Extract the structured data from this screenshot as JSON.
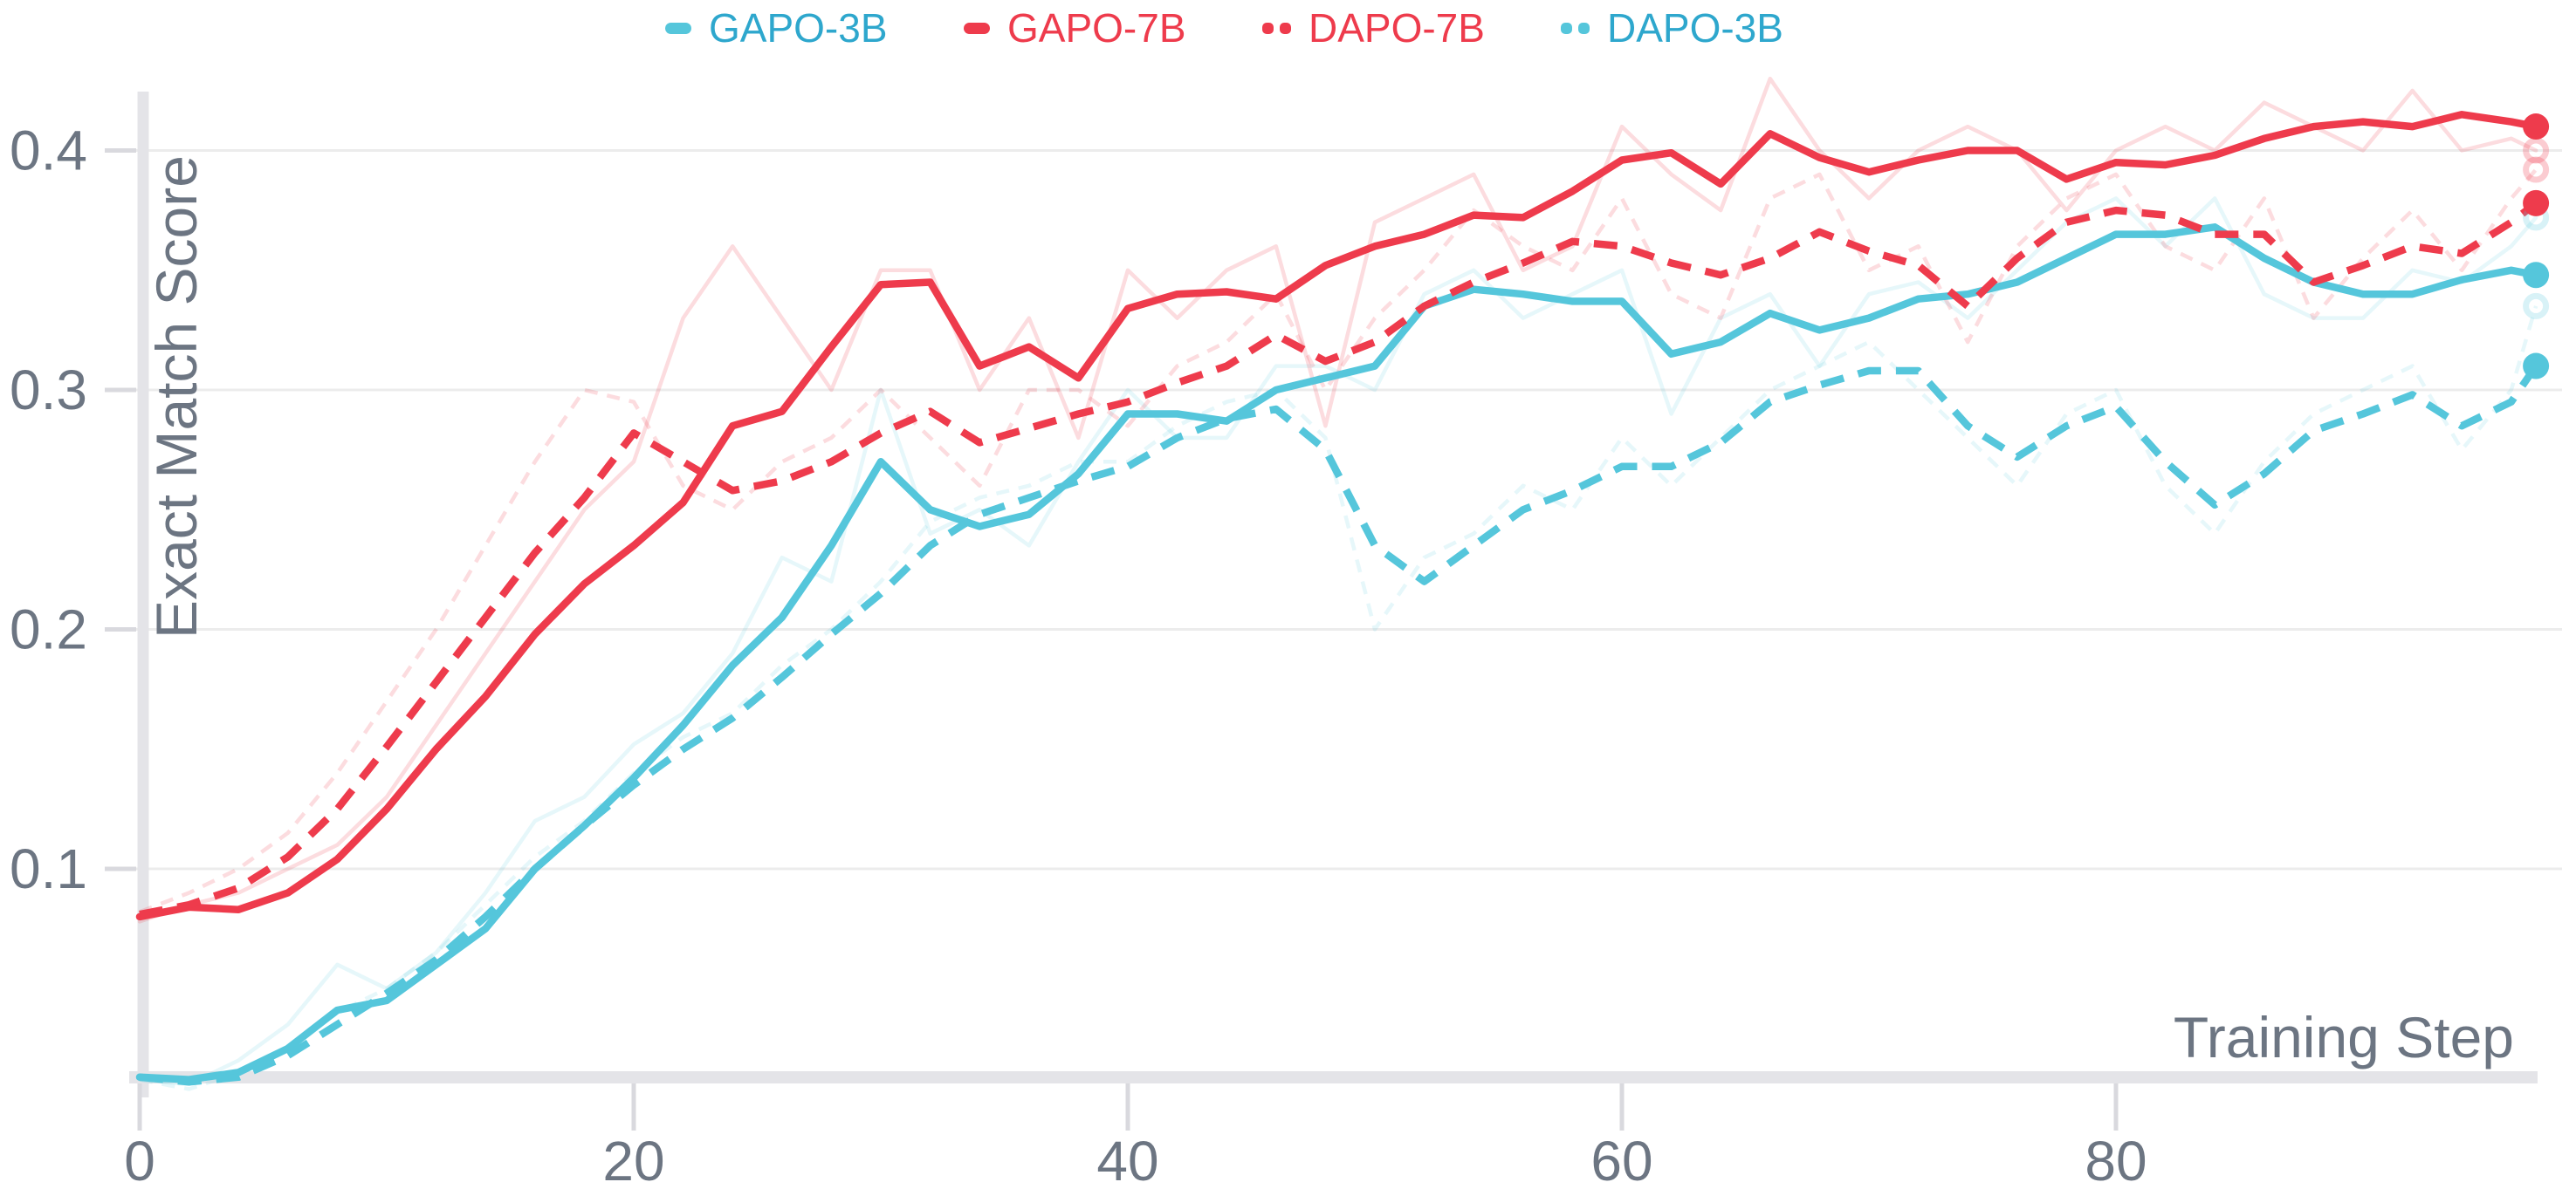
{
  "figure": {
    "background": "#ffffff",
    "colors": {
      "text_gray": "#6C7582",
      "grid": "#ECECEC",
      "axis_line": "#E4E4E8",
      "tick_mark": "#D9D9DE"
    }
  },
  "legend": {
    "position": "top-center",
    "items": [
      {
        "label": "GAPO-3B",
        "style": "solid",
        "color": "#55C6DB",
        "label_color": "#2EA7CD"
      },
      {
        "label": "GAPO-7B",
        "style": "solid",
        "color": "#EE3B4C",
        "label_color": "#EE3B4C"
      },
      {
        "label": "DAPO-7B",
        "style": "dashed",
        "color": "#EE3B4C",
        "label_color": "#EE3B4C"
      },
      {
        "label": "DAPO-3B",
        "style": "dashed",
        "color": "#55C6DB",
        "label_color": "#2EA7CD"
      }
    ]
  },
  "axes": {
    "x": {
      "label": "Training Step",
      "ticks": [
        {
          "value": 0,
          "label": "0"
        },
        {
          "value": 20,
          "label": "20"
        },
        {
          "value": 40,
          "label": "40"
        },
        {
          "value": 60,
          "label": "60"
        },
        {
          "value": 80,
          "label": "80"
        }
      ]
    },
    "y": {
      "label": "Exact Match Score",
      "ticks": [
        {
          "value": 0.1,
          "label": "0.1"
        },
        {
          "value": 0.2,
          "label": "0.2"
        },
        {
          "value": 0.3,
          "label": "0.3"
        },
        {
          "value": 0.4,
          "label": "0.4"
        }
      ]
    }
  },
  "chart_data": {
    "type": "line",
    "title": "",
    "xlabel": "Training Step",
    "ylabel": "Exact Match Score",
    "xlim": [
      0,
      98.2
    ],
    "ylim": [
      0.0,
      0.443
    ],
    "grid": "horizontal-only",
    "legend_position": "top-center",
    "note": "Each model has a bold smoothed curve plus a faint raw curve; end-of-training markers at final step.",
    "steps": [
      0,
      2,
      4,
      6,
      8,
      10,
      12,
      14,
      16,
      18,
      20,
      22,
      24,
      26,
      28,
      30,
      32,
      34,
      36,
      38,
      40,
      42,
      44,
      46,
      48,
      50,
      52,
      54,
      56,
      58,
      60,
      62,
      64,
      66,
      68,
      70,
      72,
      74,
      76,
      78,
      80,
      82,
      84,
      86,
      88,
      90,
      92,
      94,
      96,
      97
    ],
    "series": [
      {
        "name": "GAPO-3B",
        "color": "#55C6DB",
        "style": "solid",
        "raw_opacity": 0.15,
        "smoothed": [
          0.013,
          0.012,
          0.015,
          0.025,
          0.041,
          0.045,
          0.06,
          0.075,
          0.1,
          0.118,
          0.138,
          0.16,
          0.185,
          0.205,
          0.235,
          0.27,
          0.25,
          0.243,
          0.248,
          0.265,
          0.29,
          0.29,
          0.287,
          0.3,
          0.305,
          0.31,
          0.335,
          0.342,
          0.34,
          0.337,
          0.337,
          0.315,
          0.32,
          0.332,
          0.325,
          0.33,
          0.338,
          0.34,
          0.345,
          0.355,
          0.365,
          0.365,
          0.368,
          0.355,
          0.345,
          0.34,
          0.34,
          0.346,
          0.35,
          0.348
        ],
        "raw": [
          0.012,
          0.01,
          0.02,
          0.035,
          0.06,
          0.05,
          0.065,
          0.09,
          0.12,
          0.13,
          0.152,
          0.165,
          0.19,
          0.23,
          0.22,
          0.3,
          0.24,
          0.25,
          0.235,
          0.27,
          0.3,
          0.28,
          0.28,
          0.31,
          0.31,
          0.3,
          0.34,
          0.35,
          0.33,
          0.34,
          0.35,
          0.29,
          0.33,
          0.34,
          0.31,
          0.34,
          0.345,
          0.33,
          0.35,
          0.37,
          0.38,
          0.36,
          0.38,
          0.34,
          0.33,
          0.33,
          0.35,
          0.345,
          0.36,
          0.372
        ],
        "end_value": 0.348,
        "end_value_raw": 0.372
      },
      {
        "name": "GAPO-7B",
        "color": "#EE3B4C",
        "style": "solid",
        "raw_opacity": 0.18,
        "smoothed": [
          0.08,
          0.084,
          0.083,
          0.09,
          0.104,
          0.125,
          0.15,
          0.172,
          0.198,
          0.219,
          0.235,
          0.253,
          0.285,
          0.291,
          0.318,
          0.344,
          0.345,
          0.31,
          0.318,
          0.305,
          0.334,
          0.34,
          0.341,
          0.338,
          0.352,
          0.36,
          0.365,
          0.373,
          0.372,
          0.383,
          0.396,
          0.399,
          0.386,
          0.407,
          0.397,
          0.391,
          0.396,
          0.4,
          0.4,
          0.388,
          0.395,
          0.394,
          0.398,
          0.405,
          0.41,
          0.412,
          0.41,
          0.415,
          0.412,
          0.41
        ],
        "raw": [
          0.078,
          0.085,
          0.09,
          0.1,
          0.11,
          0.13,
          0.16,
          0.19,
          0.22,
          0.25,
          0.27,
          0.33,
          0.36,
          0.33,
          0.3,
          0.35,
          0.35,
          0.3,
          0.33,
          0.28,
          0.35,
          0.33,
          0.35,
          0.36,
          0.285,
          0.37,
          0.38,
          0.39,
          0.35,
          0.36,
          0.41,
          0.39,
          0.375,
          0.43,
          0.4,
          0.38,
          0.4,
          0.41,
          0.4,
          0.375,
          0.4,
          0.41,
          0.4,
          0.42,
          0.41,
          0.4,
          0.425,
          0.4,
          0.405,
          0.4
        ],
        "end_value": 0.41,
        "end_value_raw": 0.4
      },
      {
        "name": "DAPO-7B",
        "color": "#EE3B4C",
        "style": "dashed",
        "raw_opacity": 0.18,
        "smoothed": [
          0.081,
          0.085,
          0.092,
          0.105,
          0.125,
          0.151,
          0.178,
          0.205,
          0.232,
          0.255,
          0.282,
          0.27,
          0.258,
          0.262,
          0.27,
          0.282,
          0.291,
          0.278,
          0.284,
          0.29,
          0.295,
          0.303,
          0.31,
          0.323,
          0.312,
          0.32,
          0.335,
          0.345,
          0.353,
          0.362,
          0.36,
          0.353,
          0.348,
          0.355,
          0.366,
          0.358,
          0.352,
          0.335,
          0.355,
          0.37,
          0.375,
          0.373,
          0.365,
          0.365,
          0.345,
          0.352,
          0.36,
          0.357,
          0.37,
          0.378
        ],
        "raw": [
          0.082,
          0.09,
          0.1,
          0.115,
          0.14,
          0.17,
          0.2,
          0.235,
          0.27,
          0.3,
          0.295,
          0.26,
          0.25,
          0.27,
          0.28,
          0.3,
          0.28,
          0.26,
          0.3,
          0.3,
          0.285,
          0.31,
          0.32,
          0.34,
          0.3,
          0.33,
          0.35,
          0.375,
          0.36,
          0.35,
          0.38,
          0.34,
          0.33,
          0.38,
          0.39,
          0.35,
          0.36,
          0.32,
          0.36,
          0.38,
          0.39,
          0.36,
          0.35,
          0.38,
          0.33,
          0.355,
          0.375,
          0.35,
          0.38,
          0.392
        ],
        "end_value": 0.378,
        "end_value_raw": 0.392
      },
      {
        "name": "DAPO-3B",
        "color": "#55C6DB",
        "style": "dashed",
        "raw_opacity": 0.15,
        "smoothed": [
          0.013,
          0.011,
          0.013,
          0.022,
          0.035,
          0.048,
          0.062,
          0.08,
          0.1,
          0.118,
          0.135,
          0.15,
          0.163,
          0.18,
          0.198,
          0.215,
          0.235,
          0.248,
          0.255,
          0.262,
          0.268,
          0.28,
          0.288,
          0.292,
          0.275,
          0.235,
          0.22,
          0.235,
          0.25,
          0.258,
          0.268,
          0.268,
          0.278,
          0.295,
          0.302,
          0.308,
          0.308,
          0.285,
          0.272,
          0.285,
          0.293,
          0.27,
          0.252,
          0.265,
          0.283,
          0.29,
          0.298,
          0.285,
          0.295,
          0.31
        ],
        "raw": [
          0.012,
          0.008,
          0.015,
          0.025,
          0.04,
          0.05,
          0.065,
          0.085,
          0.105,
          0.12,
          0.14,
          0.155,
          0.165,
          0.185,
          0.2,
          0.22,
          0.245,
          0.255,
          0.26,
          0.27,
          0.27,
          0.285,
          0.295,
          0.3,
          0.28,
          0.2,
          0.23,
          0.24,
          0.26,
          0.25,
          0.28,
          0.26,
          0.28,
          0.3,
          0.31,
          0.32,
          0.3,
          0.28,
          0.26,
          0.29,
          0.3,
          0.26,
          0.24,
          0.27,
          0.29,
          0.3,
          0.31,
          0.275,
          0.3,
          0.335
        ],
        "end_value": 0.31,
        "end_value_raw": 0.335
      }
    ]
  }
}
